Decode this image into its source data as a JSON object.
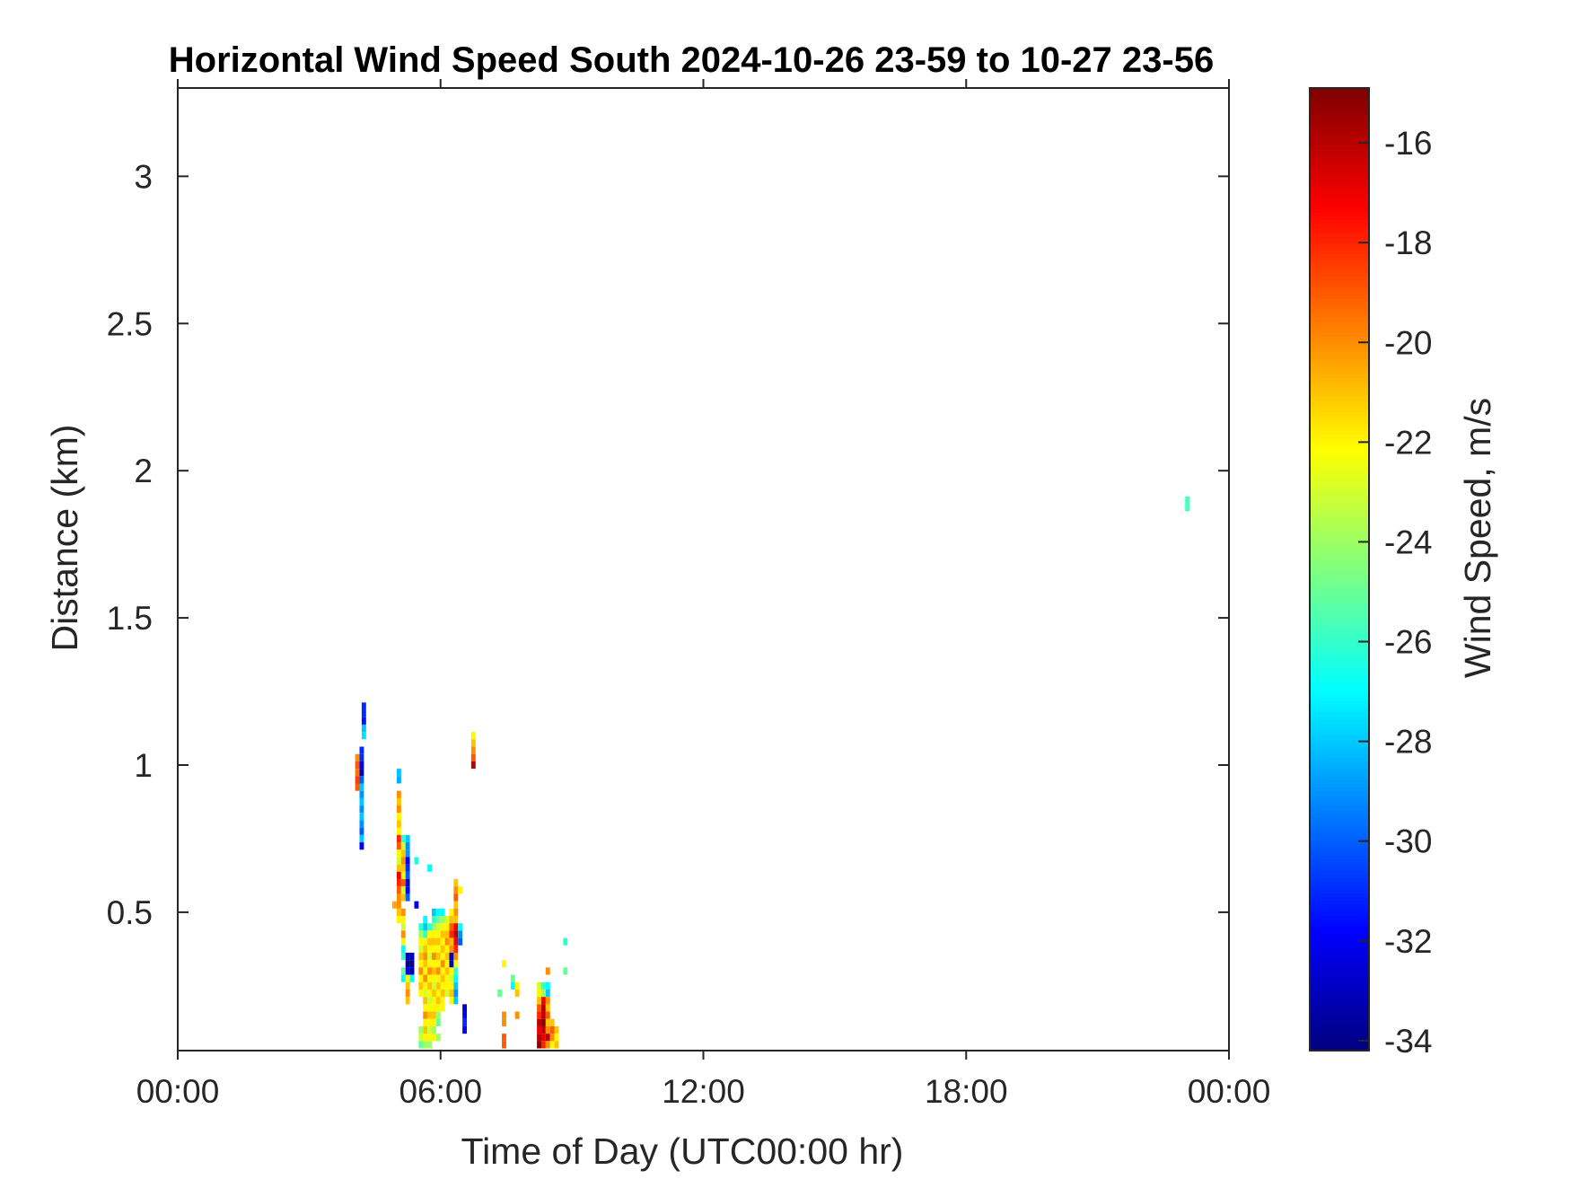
{
  "chart_data": {
    "type": "heatmap",
    "title": "Horizontal Wind Speed South 2024-10-26 23-59 to 10-27 23-56",
    "xlabel": "Time of Day (UTC00:00 hr)",
    "ylabel": "Distance (km)",
    "xlim": [
      0,
      24
    ],
    "ylim": [
      0.03,
      3.3
    ],
    "x_ticks": [
      {
        "value": 0,
        "label": "00:00"
      },
      {
        "value": 6,
        "label": "06:00"
      },
      {
        "value": 12,
        "label": "12:00"
      },
      {
        "value": 18,
        "label": "18:00"
      },
      {
        "value": 24,
        "label": "00:00"
      }
    ],
    "y_ticks": [
      {
        "value": 0.5,
        "label": "0.5"
      },
      {
        "value": 1,
        "label": "1"
      },
      {
        "value": 1.5,
        "label": "1.5"
      },
      {
        "value": 2,
        "label": "2"
      },
      {
        "value": 2.5,
        "label": "2.5"
      },
      {
        "value": 3,
        "label": "3"
      }
    ],
    "colorbar": {
      "label": "Wind Speed, m/s",
      "colormap": "jet",
      "limits": [
        -34.2,
        -14.9
      ],
      "ticks": [
        {
          "value": -16,
          "label": "-16"
        },
        {
          "value": -18,
          "label": "-18"
        },
        {
          "value": -20,
          "label": "-20"
        },
        {
          "value": -22,
          "label": "-22"
        },
        {
          "value": -24,
          "label": "-24"
        },
        {
          "value": -26,
          "label": "-26"
        },
        {
          "value": -28,
          "label": "-28"
        },
        {
          "value": -30,
          "label": "-30"
        },
        {
          "value": -32,
          "label": "-32"
        },
        {
          "value": -34,
          "label": "-34"
        }
      ]
    },
    "cell_size": {
      "dt_hours": 0.1,
      "dr_km": 0.025
    },
    "cells": [
      [
        4.25,
        1.2,
        -31
      ],
      [
        4.25,
        1.175,
        -31
      ],
      [
        4.25,
        1.15,
        -31.5
      ],
      [
        4.25,
        1.125,
        -28
      ],
      [
        4.25,
        1.1,
        -27.5
      ],
      [
        4.2,
        1.05,
        -31
      ],
      [
        4.2,
        1.025,
        -31
      ],
      [
        4.2,
        1.0,
        -32
      ],
      [
        4.2,
        0.975,
        -33
      ],
      [
        4.2,
        0.95,
        -30
      ],
      [
        4.2,
        0.925,
        -28
      ],
      [
        4.2,
        0.9,
        -29
      ],
      [
        4.2,
        0.875,
        -28
      ],
      [
        4.2,
        0.85,
        -29
      ],
      [
        4.2,
        0.825,
        -28
      ],
      [
        4.2,
        0.8,
        -29
      ],
      [
        4.2,
        0.775,
        -30
      ],
      [
        4.2,
        0.75,
        -28
      ],
      [
        4.2,
        0.725,
        -32
      ],
      [
        4.1,
        1.025,
        -20
      ],
      [
        4.1,
        1.0,
        -19
      ],
      [
        4.1,
        0.975,
        -19.5
      ],
      [
        4.1,
        0.95,
        -18.5
      ],
      [
        4.1,
        0.925,
        -19
      ],
      [
        5.05,
        0.975,
        -28
      ],
      [
        5.05,
        0.95,
        -28.5
      ],
      [
        5.05,
        0.9,
        -20
      ],
      [
        5.05,
        0.875,
        -21
      ],
      [
        5.05,
        0.85,
        -20
      ],
      [
        5.05,
        0.825,
        -22
      ],
      [
        5.05,
        0.8,
        -21
      ],
      [
        5.05,
        0.775,
        -22
      ],
      [
        5.05,
        0.75,
        -18
      ],
      [
        5.05,
        0.725,
        -19
      ],
      [
        5.05,
        0.7,
        -22
      ],
      [
        5.05,
        0.675,
        -23
      ],
      [
        5.05,
        0.65,
        -21
      ],
      [
        5.05,
        0.625,
        -17
      ],
      [
        5.05,
        0.6,
        -18
      ],
      [
        5.05,
        0.575,
        -19
      ],
      [
        5.05,
        0.55,
        -20
      ],
      [
        5.05,
        0.525,
        -20
      ],
      [
        5.05,
        0.5,
        -21
      ],
      [
        5.05,
        0.475,
        -22
      ],
      [
        4.95,
        0.525,
        -20.5
      ],
      [
        5.15,
        0.75,
        -26
      ],
      [
        5.15,
        0.725,
        -23
      ],
      [
        5.15,
        0.7,
        -21
      ],
      [
        5.15,
        0.675,
        -20
      ],
      [
        5.15,
        0.65,
        -21
      ],
      [
        5.15,
        0.625,
        -22
      ],
      [
        5.15,
        0.6,
        -19
      ],
      [
        5.15,
        0.575,
        -23
      ],
      [
        5.15,
        0.55,
        -21
      ],
      [
        5.15,
        0.5,
        -20
      ],
      [
        5.15,
        0.475,
        -22
      ],
      [
        5.15,
        0.45,
        -23
      ],
      [
        5.15,
        0.425,
        -20
      ],
      [
        5.15,
        0.4,
        -22
      ],
      [
        5.15,
        0.375,
        -27
      ],
      [
        5.15,
        0.35,
        -26
      ],
      [
        5.15,
        0.3,
        -25
      ],
      [
        5.15,
        0.275,
        -27
      ],
      [
        5.25,
        0.75,
        -28
      ],
      [
        5.25,
        0.725,
        -29
      ],
      [
        5.25,
        0.7,
        -29
      ],
      [
        5.25,
        0.675,
        -32
      ],
      [
        5.25,
        0.65,
        -31
      ],
      [
        5.25,
        0.625,
        -30
      ],
      [
        5.25,
        0.6,
        -33
      ],
      [
        5.25,
        0.575,
        -32
      ],
      [
        5.25,
        0.55,
        -30
      ],
      [
        5.25,
        0.35,
        -33
      ],
      [
        5.25,
        0.325,
        -34
      ],
      [
        5.25,
        0.3,
        -32
      ],
      [
        5.25,
        0.275,
        -22
      ],
      [
        5.25,
        0.25,
        -21
      ],
      [
        5.25,
        0.225,
        -20
      ],
      [
        5.25,
        0.2,
        -21
      ],
      [
        5.35,
        0.35,
        -33
      ],
      [
        5.35,
        0.325,
        -34
      ],
      [
        5.35,
        0.3,
        -33.5
      ],
      [
        5.35,
        0.275,
        -27
      ],
      [
        5.45,
        0.675,
        -26.5
      ],
      [
        5.45,
        0.525,
        -32
      ],
      [
        5.55,
        0.45,
        -26
      ],
      [
        5.55,
        0.425,
        -24
      ],
      [
        5.55,
        0.4,
        -22
      ],
      [
        5.55,
        0.375,
        -23
      ],
      [
        5.55,
        0.35,
        -21
      ],
      [
        5.55,
        0.325,
        -22
      ],
      [
        5.55,
        0.3,
        -20
      ],
      [
        5.55,
        0.275,
        -22
      ],
      [
        5.55,
        0.25,
        -21
      ],
      [
        5.55,
        0.225,
        -22
      ],
      [
        5.55,
        0.1,
        -24
      ],
      [
        5.55,
        0.075,
        -23
      ],
      [
        5.55,
        0.05,
        -25
      ],
      [
        5.65,
        0.475,
        -27
      ],
      [
        5.65,
        0.45,
        -28
      ],
      [
        5.65,
        0.425,
        -26
      ],
      [
        5.65,
        0.4,
        -22
      ],
      [
        5.65,
        0.375,
        -21
      ],
      [
        5.65,
        0.35,
        -20
      ],
      [
        5.65,
        0.325,
        -21
      ],
      [
        5.65,
        0.3,
        -22
      ],
      [
        5.65,
        0.275,
        -20
      ],
      [
        5.65,
        0.25,
        -22
      ],
      [
        5.65,
        0.225,
        -23
      ],
      [
        5.65,
        0.2,
        -21
      ],
      [
        5.65,
        0.175,
        -22
      ],
      [
        5.65,
        0.15,
        -20
      ],
      [
        5.65,
        0.125,
        -22
      ],
      [
        5.65,
        0.1,
        -21
      ],
      [
        5.65,
        0.075,
        -22
      ],
      [
        5.65,
        0.05,
        -24
      ],
      [
        5.75,
        0.65,
        -27
      ],
      [
        5.75,
        0.45,
        -26
      ],
      [
        5.75,
        0.425,
        -22
      ],
      [
        5.75,
        0.4,
        -21
      ],
      [
        5.75,
        0.375,
        -22
      ],
      [
        5.75,
        0.35,
        -23
      ],
      [
        5.75,
        0.325,
        -22
      ],
      [
        5.75,
        0.3,
        -20
      ],
      [
        5.75,
        0.275,
        -22
      ],
      [
        5.75,
        0.25,
        -21
      ],
      [
        5.75,
        0.225,
        -22
      ],
      [
        5.75,
        0.2,
        -23
      ],
      [
        5.75,
        0.175,
        -22
      ],
      [
        5.75,
        0.15,
        -21
      ],
      [
        5.75,
        0.125,
        -22
      ],
      [
        5.75,
        0.1,
        -23
      ],
      [
        5.75,
        0.075,
        -22
      ],
      [
        5.75,
        0.05,
        -24
      ],
      [
        5.85,
        0.5,
        -28
      ],
      [
        5.85,
        0.475,
        -26
      ],
      [
        5.85,
        0.45,
        -24
      ],
      [
        5.85,
        0.425,
        -22
      ],
      [
        5.85,
        0.4,
        -21
      ],
      [
        5.85,
        0.375,
        -22
      ],
      [
        5.85,
        0.35,
        -20
      ],
      [
        5.85,
        0.325,
        -22
      ],
      [
        5.85,
        0.3,
        -21
      ],
      [
        5.85,
        0.275,
        -22
      ],
      [
        5.85,
        0.25,
        -23
      ],
      [
        5.85,
        0.225,
        -21
      ],
      [
        5.85,
        0.2,
        -22
      ],
      [
        5.85,
        0.175,
        -22
      ],
      [
        5.85,
        0.15,
        -21
      ],
      [
        5.85,
        0.125,
        -22
      ],
      [
        5.85,
        0.1,
        -24
      ],
      [
        5.85,
        0.075,
        -22
      ],
      [
        5.95,
        0.5,
        -27
      ],
      [
        5.95,
        0.475,
        -25
      ],
      [
        5.95,
        0.45,
        -23
      ],
      [
        5.95,
        0.425,
        -22
      ],
      [
        5.95,
        0.4,
        -21
      ],
      [
        5.95,
        0.375,
        -22
      ],
      [
        5.95,
        0.35,
        -21
      ],
      [
        5.95,
        0.325,
        -22
      ],
      [
        5.95,
        0.3,
        -20
      ],
      [
        5.95,
        0.275,
        -22
      ],
      [
        5.95,
        0.25,
        -21
      ],
      [
        5.95,
        0.225,
        -22
      ],
      [
        5.95,
        0.2,
        -21
      ],
      [
        5.95,
        0.175,
        -22
      ],
      [
        5.95,
        0.15,
        -24
      ],
      [
        5.95,
        0.125,
        -25
      ],
      [
        5.95,
        0.075,
        -24
      ],
      [
        6.05,
        0.5,
        -27
      ],
      [
        6.05,
        0.475,
        -24
      ],
      [
        6.05,
        0.45,
        -22
      ],
      [
        6.05,
        0.425,
        -21
      ],
      [
        6.05,
        0.4,
        -22
      ],
      [
        6.05,
        0.375,
        -21
      ],
      [
        6.05,
        0.35,
        -22
      ],
      [
        6.05,
        0.325,
        -20
      ],
      [
        6.05,
        0.3,
        -22
      ],
      [
        6.05,
        0.275,
        -21
      ],
      [
        6.05,
        0.25,
        -22
      ],
      [
        6.05,
        0.225,
        -21
      ],
      [
        6.05,
        0.2,
        -22
      ],
      [
        6.05,
        0.175,
        -22
      ],
      [
        6.15,
        0.475,
        -23
      ],
      [
        6.15,
        0.45,
        -22
      ],
      [
        6.15,
        0.425,
        -21
      ],
      [
        6.15,
        0.4,
        -20
      ],
      [
        6.15,
        0.375,
        -22
      ],
      [
        6.15,
        0.35,
        -21
      ],
      [
        6.15,
        0.325,
        -22
      ],
      [
        6.15,
        0.3,
        -21
      ],
      [
        6.15,
        0.275,
        -22
      ],
      [
        6.15,
        0.25,
        -22
      ],
      [
        6.15,
        0.225,
        -23
      ],
      [
        6.25,
        0.5,
        -22
      ],
      [
        6.25,
        0.475,
        -21
      ],
      [
        6.25,
        0.45,
        -19
      ],
      [
        6.25,
        0.425,
        -18
      ],
      [
        6.25,
        0.4,
        -21
      ],
      [
        6.25,
        0.375,
        -20
      ],
      [
        6.25,
        0.35,
        -33
      ],
      [
        6.25,
        0.325,
        -33
      ],
      [
        6.25,
        0.3,
        -22
      ],
      [
        6.25,
        0.275,
        -23
      ],
      [
        6.25,
        0.25,
        -22
      ],
      [
        6.25,
        0.225,
        -21
      ],
      [
        6.25,
        0.2,
        -22
      ],
      [
        6.35,
        0.6,
        -21
      ],
      [
        6.35,
        0.575,
        -20
      ],
      [
        6.35,
        0.55,
        -19
      ],
      [
        6.35,
        0.525,
        -21
      ],
      [
        6.35,
        0.5,
        -20
      ],
      [
        6.35,
        0.475,
        -21
      ],
      [
        6.35,
        0.45,
        -17
      ],
      [
        6.35,
        0.425,
        -16
      ],
      [
        6.35,
        0.4,
        -17
      ],
      [
        6.35,
        0.375,
        -18
      ],
      [
        6.35,
        0.35,
        -20
      ],
      [
        6.35,
        0.325,
        -22
      ],
      [
        6.35,
        0.3,
        -26
      ],
      [
        6.35,
        0.275,
        -27
      ],
      [
        6.35,
        0.25,
        -28
      ],
      [
        6.35,
        0.225,
        -29
      ],
      [
        6.35,
        0.2,
        -28
      ],
      [
        6.45,
        0.575,
        -22
      ],
      [
        6.45,
        0.45,
        -27
      ],
      [
        6.45,
        0.425,
        -29
      ],
      [
        6.45,
        0.4,
        -30
      ],
      [
        6.55,
        0.175,
        -33
      ],
      [
        6.55,
        0.15,
        -32
      ],
      [
        6.55,
        0.125,
        -31
      ],
      [
        6.55,
        0.1,
        -32
      ],
      [
        6.75,
        1.1,
        -22
      ],
      [
        6.75,
        1.075,
        -21
      ],
      [
        6.75,
        1.05,
        -20
      ],
      [
        6.75,
        1.025,
        -19
      ],
      [
        6.75,
        1.0,
        -16
      ],
      [
        7.35,
        0.225,
        -25
      ],
      [
        7.45,
        0.325,
        -22
      ],
      [
        7.45,
        0.15,
        -20
      ],
      [
        7.45,
        0.125,
        -20
      ],
      [
        7.45,
        0.075,
        -19
      ],
      [
        7.45,
        0.05,
        -19
      ],
      [
        7.65,
        0.275,
        -25
      ],
      [
        7.65,
        0.25,
        -27
      ],
      [
        7.75,
        0.25,
        -22
      ],
      [
        7.75,
        0.225,
        -21
      ],
      [
        7.75,
        0.15,
        -20
      ],
      [
        8.25,
        0.25,
        -23
      ],
      [
        8.25,
        0.225,
        -22
      ],
      [
        8.25,
        0.2,
        -21
      ],
      [
        8.25,
        0.175,
        -19
      ],
      [
        8.25,
        0.15,
        -18
      ],
      [
        8.25,
        0.125,
        -16
      ],
      [
        8.25,
        0.1,
        -17
      ],
      [
        8.25,
        0.075,
        -16
      ],
      [
        8.25,
        0.05,
        -15
      ],
      [
        8.35,
        0.25,
        -26
      ],
      [
        8.35,
        0.225,
        -24
      ],
      [
        8.35,
        0.2,
        -17
      ],
      [
        8.35,
        0.175,
        -16
      ],
      [
        8.35,
        0.15,
        -16
      ],
      [
        8.35,
        0.125,
        -15
      ],
      [
        8.35,
        0.1,
        -16
      ],
      [
        8.35,
        0.075,
        -17
      ],
      [
        8.35,
        0.05,
        -18
      ],
      [
        8.45,
        0.3,
        -20
      ],
      [
        8.45,
        0.25,
        -27
      ],
      [
        8.45,
        0.225,
        -28
      ],
      [
        8.45,
        0.2,
        -20
      ],
      [
        8.45,
        0.175,
        -21
      ],
      [
        8.45,
        0.15,
        -19
      ],
      [
        8.45,
        0.125,
        -21
      ],
      [
        8.45,
        0.1,
        -20
      ],
      [
        8.45,
        0.075,
        -16
      ],
      [
        8.45,
        0.05,
        -20
      ],
      [
        8.55,
        0.125,
        -21
      ],
      [
        8.55,
        0.1,
        -19
      ],
      [
        8.55,
        0.075,
        -20
      ],
      [
        8.55,
        0.05,
        -22
      ],
      [
        8.65,
        0.1,
        -21
      ],
      [
        8.65,
        0.075,
        -22
      ],
      [
        8.65,
        0.05,
        -21
      ],
      [
        8.85,
        0.4,
        -26
      ],
      [
        8.85,
        0.3,
        -25
      ],
      [
        23.05,
        1.9,
        -25.5
      ],
      [
        23.05,
        1.875,
        -25.5
      ]
    ]
  }
}
